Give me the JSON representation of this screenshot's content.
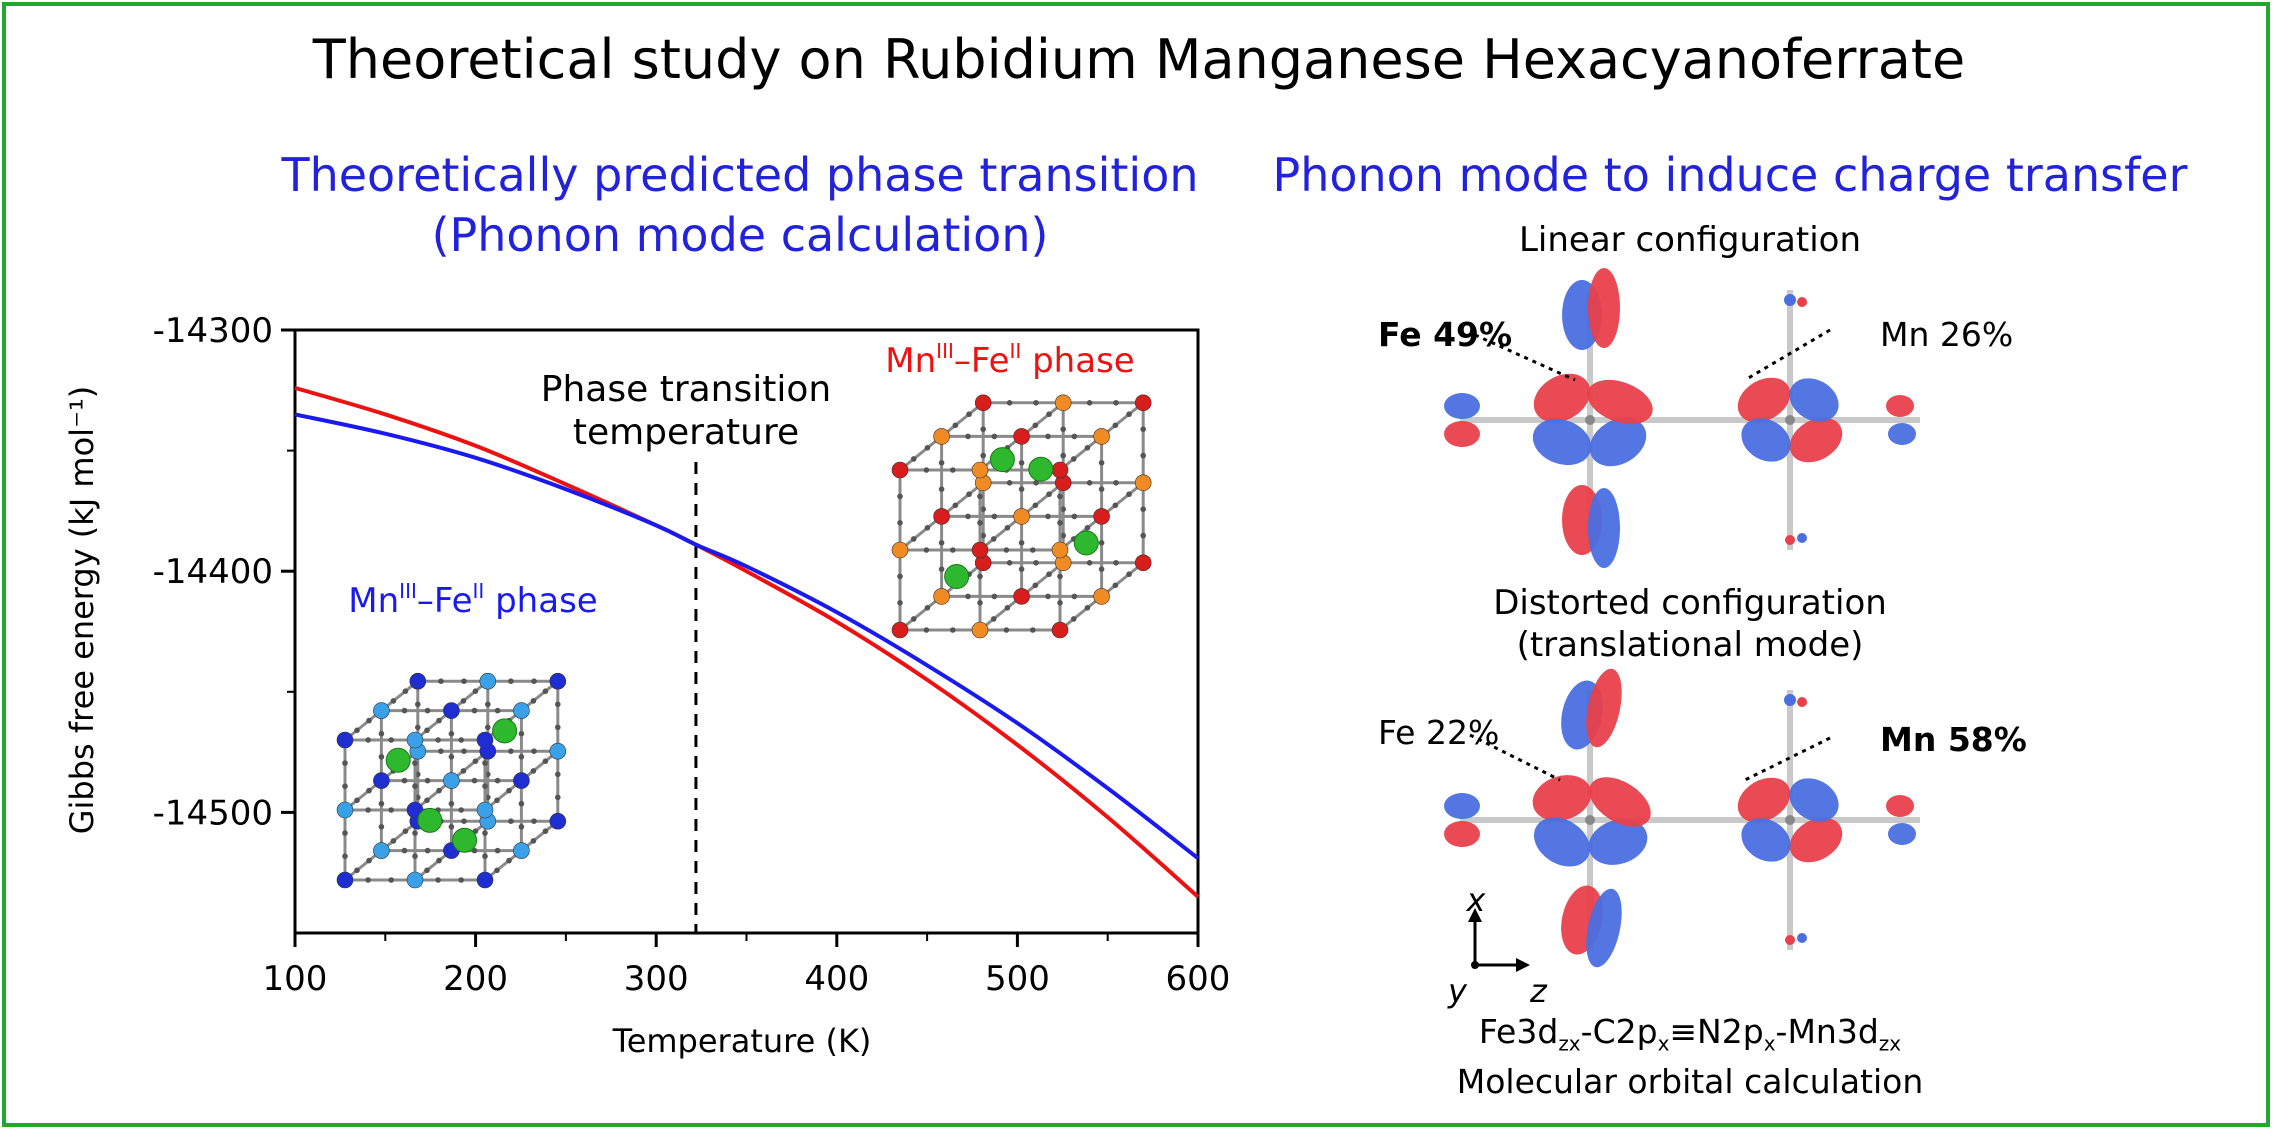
{
  "title": "Theoretical study on Rubidium Manganese Hexacyanoferrate",
  "left_panel": {
    "heading_line1": "Theoretically predicted phase transition",
    "heading_line2": "(Phonon mode calculation)",
    "annotation_line1": "Phase transition",
    "annotation_line2": "temperature",
    "high_phase": {
      "prefix": "Mn",
      "sup1": "III",
      "mid": "–Fe",
      "sup2": "II",
      "suffix": " phase"
    },
    "low_phase": {
      "prefix": "Mn",
      "sup1": "III",
      "mid": "–Fe",
      "sup2": "II",
      "suffix": " phase"
    }
  },
  "right_panel": {
    "heading": "Phonon mode to induce charge transfer",
    "linear_label": "Linear configuration",
    "linear_fe": "Fe 49%",
    "linear_mn": "Mn 26%",
    "distorted_line1": "Distorted configuration",
    "distorted_line2": "(translational mode)",
    "distorted_fe": "Fe 22%",
    "distorted_mn": "Mn 58%",
    "axis_x": "x",
    "axis_y": "y",
    "axis_z": "z",
    "formula": {
      "a": "Fe3d",
      "a_sub": "zx",
      "b": "-C2p",
      "b_sub": "x",
      "c": "≡N2p",
      "c_sub": "x",
      "d": "-Mn3d",
      "d_sub": "zx"
    },
    "caption": "Molecular orbital calculation"
  },
  "colors": {
    "red": "#ee1111",
    "blue": "#1a1aee",
    "frame": "#22a82e",
    "orbital_red": "#e8404a",
    "orbital_blue": "#4a6fe0"
  },
  "chart_data": {
    "type": "line",
    "xlabel": "Temperature (K)",
    "ylabel": "Gibbs free energy (kJ mol⁻¹)",
    "xlim": [
      100,
      600
    ],
    "ylim": [
      -14550,
      -14300
    ],
    "x_ticks": [
      100,
      200,
      300,
      400,
      500,
      600
    ],
    "y_ticks": [
      -14300,
      -14400,
      -14500
    ],
    "transition_temperature": 322,
    "series": [
      {
        "color": "#ee1111",
        "x": [
          100,
          150,
          200,
          250,
          300,
          322,
          350,
          400,
          450,
          500,
          550,
          600
        ],
        "y": [
          -14324,
          -14335,
          -14348,
          -14364,
          -14381,
          -14389,
          -14400,
          -14421,
          -14445,
          -14472,
          -14502,
          -14535
        ]
      },
      {
        "color": "#1a1aee",
        "x": [
          100,
          150,
          200,
          250,
          300,
          322,
          350,
          400,
          450,
          500,
          550,
          600
        ],
        "y": [
          -14335,
          -14343,
          -14353,
          -14366,
          -14381,
          -14389,
          -14398,
          -14417,
          -14439,
          -14463,
          -14490,
          -14519
        ]
      }
    ]
  }
}
